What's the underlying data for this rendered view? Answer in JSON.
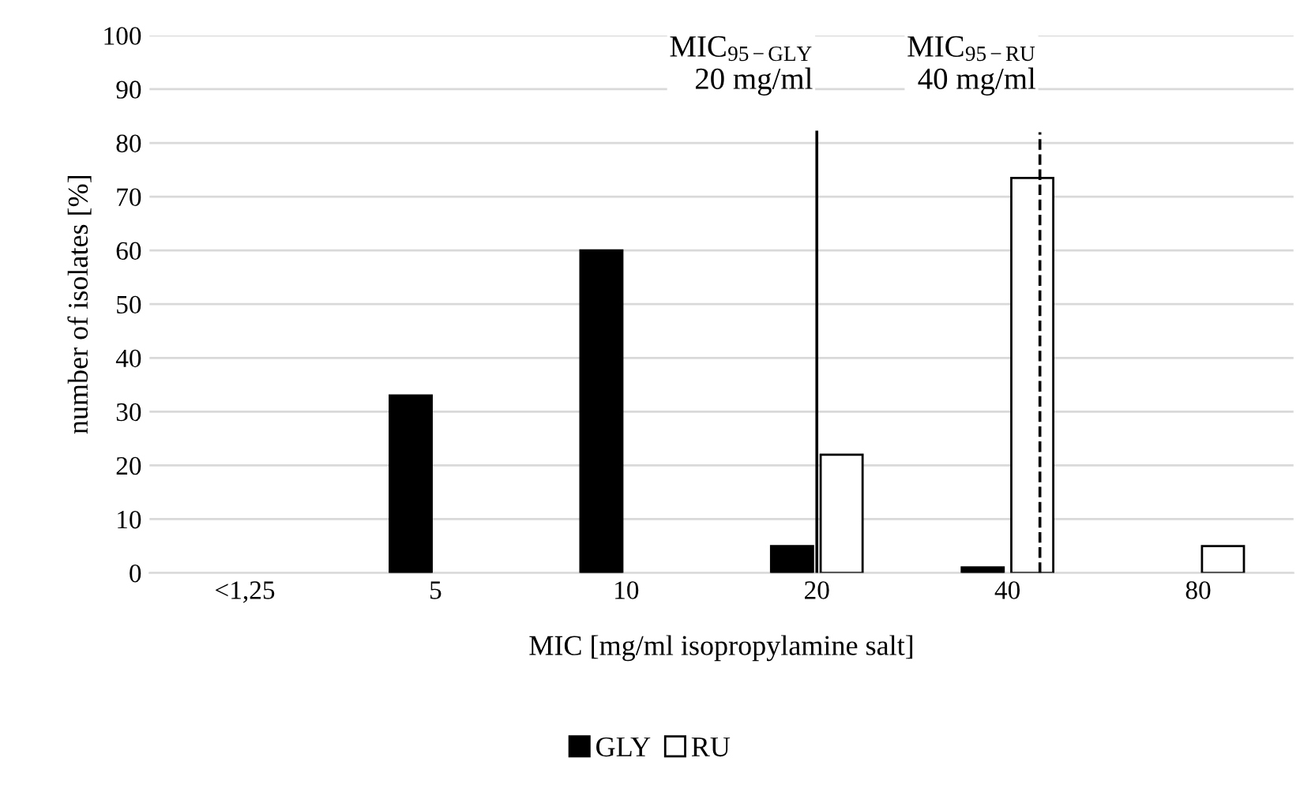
{
  "chart_data": {
    "type": "bar",
    "xlabel": "MIC [mg/ml isopropylamine salt]",
    "ylabel": "number of isolates [%]",
    "categories": [
      "<1,25",
      "5",
      "10",
      "20",
      "40",
      "80"
    ],
    "series": [
      {
        "name": "GLY",
        "color": "#000000",
        "values": [
          0,
          33,
          60,
          5,
          1,
          0
        ]
      },
      {
        "name": "RU",
        "color": "#ffffff",
        "values": [
          0,
          0,
          0,
          22,
          73.5,
          5
        ]
      }
    ],
    "ylim": [
      0,
      100
    ],
    "yticks": [
      0,
      10,
      20,
      30,
      40,
      50,
      60,
      70,
      80,
      90,
      100
    ],
    "grid": "y",
    "legend": "bottom",
    "ref_lines": [
      {
        "axis": "x",
        "value": "20",
        "label": "MIC$_{95−GLY}$\n20 mg/ml",
        "color": "#000000",
        "line_style": "solid"
      },
      {
        "axis": "x",
        "value": "40",
        "label": "MIC$_{95−RU}$\n40 mg/ml",
        "color": "#000000",
        "line_style": "dashed"
      }
    ]
  }
}
